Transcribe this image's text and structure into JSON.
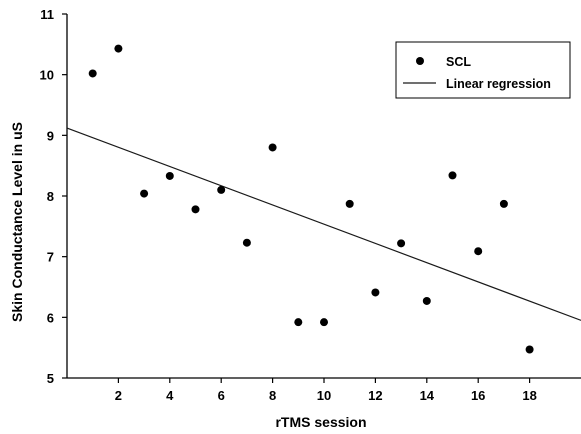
{
  "chart_data": {
    "type": "scatter",
    "xlabel": "rTMS session",
    "ylabel": "Skin Conductance Level in uS",
    "xlim": [
      0,
      20
    ],
    "ylim": [
      5,
      11
    ],
    "x_ticks": [
      2,
      4,
      6,
      8,
      10,
      12,
      14,
      16,
      18
    ],
    "y_ticks": [
      5,
      6,
      7,
      8,
      9,
      10,
      11
    ],
    "grid": false,
    "legend": {
      "position": "top-right",
      "entries": [
        {
          "label": "SCL",
          "marker": "dot"
        },
        {
          "label": "Linear regression",
          "marker": "line"
        }
      ]
    },
    "series": [
      {
        "name": "SCL",
        "kind": "scatter",
        "points": [
          {
            "x": 1,
            "y": 10.02
          },
          {
            "x": 2,
            "y": 10.43
          },
          {
            "x": 3,
            "y": 8.04
          },
          {
            "x": 4,
            "y": 8.33
          },
          {
            "x": 5,
            "y": 7.78
          },
          {
            "x": 6,
            "y": 8.1
          },
          {
            "x": 7,
            "y": 7.23
          },
          {
            "x": 8,
            "y": 8.8
          },
          {
            "x": 9,
            "y": 5.92
          },
          {
            "x": 10,
            "y": 5.92
          },
          {
            "x": 11,
            "y": 7.87
          },
          {
            "x": 12,
            "y": 6.41
          },
          {
            "x": 13,
            "y": 7.22
          },
          {
            "x": 14,
            "y": 6.27
          },
          {
            "x": 15,
            "y": 8.34
          },
          {
            "x": 16,
            "y": 7.09
          },
          {
            "x": 17,
            "y": 7.87
          },
          {
            "x": 18,
            "y": 5.47
          }
        ]
      },
      {
        "name": "Linear regression",
        "kind": "line",
        "points": [
          {
            "x": 0,
            "y": 9.12
          },
          {
            "x": 20,
            "y": 5.95
          }
        ]
      }
    ]
  }
}
